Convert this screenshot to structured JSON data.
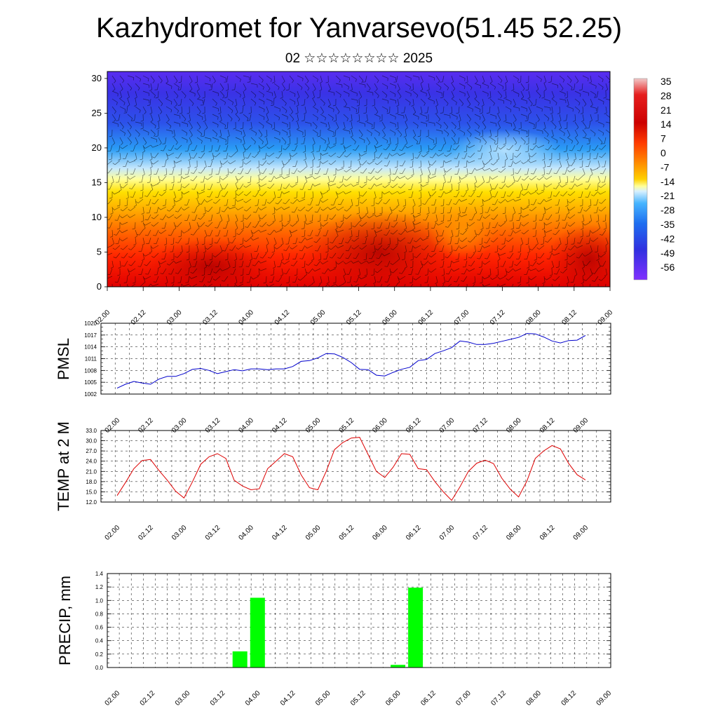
{
  "title": "Kazhydromet for Yanvarsevo(51.45 52.25)",
  "subtitle": "02 ☆☆☆☆☆☆☆☆ 2025",
  "time_labels": [
    "02.00",
    "02.12",
    "03.00",
    "03.12",
    "04.00",
    "04.12",
    "05.00",
    "05.12",
    "06.00",
    "06.12",
    "07.00",
    "07.12",
    "08.00",
    "08.12",
    "09.00"
  ],
  "chart_data": [
    {
      "type": "heatmap",
      "name": "temperature-cross-section",
      "x": [
        "02.00",
        "02.12",
        "03.00",
        "03.12",
        "04.00",
        "04.12",
        "05.00",
        "05.12",
        "06.00",
        "06.12",
        "07.00",
        "07.12",
        "08.00",
        "08.12",
        "09.00"
      ],
      "y_ticks": [
        0,
        5,
        10,
        15,
        20,
        25,
        30
      ],
      "ylim": [
        0,
        31
      ],
      "colorbar_labels": [
        "35",
        "28",
        "21",
        "14",
        "7",
        "0",
        "-7",
        "-14",
        "-21",
        "-28",
        "-35",
        "-42",
        "-49",
        "-56"
      ],
      "colorbar_range": [
        -60,
        39
      ],
      "overlay": "wind barbs"
    },
    {
      "type": "line",
      "name": "pmsl",
      "ylabel": "PMSL",
      "ylim": [
        1002,
        1020
      ],
      "y_ticks": [
        1002,
        1005,
        1008,
        1011,
        1014,
        1017,
        1020
      ],
      "color": "#0000cc",
      "grid": true,
      "values": [
        1003.5,
        1004.5,
        1005.2,
        1004.8,
        1004.5,
        1005.8,
        1006.5,
        1006.5,
        1007.2,
        1008.3,
        1008.5,
        1008.0,
        1007.2,
        1007.7,
        1008.2,
        1007.9,
        1008.4,
        1008.4,
        1008.2,
        1008.4,
        1008.4,
        1009.0,
        1010.3,
        1010.5,
        1011.2,
        1012.3,
        1012.2,
        1011.3,
        1010.0,
        1008.3,
        1008.2,
        1006.8,
        1006.6,
        1007.5,
        1008.3,
        1008.8,
        1010.5,
        1010.8,
        1012.3,
        1013.0,
        1013.8,
        1015.5,
        1015.2,
        1014.6,
        1014.6,
        1014.9,
        1015.4,
        1015.9,
        1016.4,
        1017.4,
        1017.3,
        1016.5,
        1015.5,
        1015.0,
        1015.6,
        1015.7,
        1016.9
      ]
    },
    {
      "type": "line",
      "name": "temp-2m",
      "ylabel": "TEMP at 2 M",
      "ylim": [
        12.0,
        33.0
      ],
      "y_ticks": [
        "12.0",
        "15.0",
        "18.0",
        "21.0",
        "24.0",
        "27.0",
        "30.0",
        "33.0"
      ],
      "color": "#dd0000",
      "grid": true,
      "values": [
        13.9,
        17.7,
        21.8,
        24.2,
        24.5,
        21.3,
        18.4,
        15.2,
        13.2,
        17.9,
        23.1,
        25.3,
        26.2,
        24.8,
        18.4,
        16.7,
        15.6,
        15.9,
        21.8,
        24.0,
        26.2,
        25.3,
        20.0,
        16.2,
        15.6,
        21.0,
        27.4,
        29.5,
        30.8,
        31.0,
        26.0,
        21.0,
        19.2,
        22.2,
        26.2,
        26.0,
        21.8,
        21.5,
        18.0,
        15.0,
        12.5,
        16.5,
        21.0,
        23.4,
        24.3,
        23.3,
        19.0,
        15.8,
        13.5,
        18.2,
        24.8,
        27.0,
        28.6,
        27.6,
        23.3,
        20.0,
        18.5
      ]
    },
    {
      "type": "bar",
      "name": "precipitation",
      "ylabel": "PRECIP, mm",
      "ylim": [
        0,
        1.4
      ],
      "y_ticks": [
        "0.0",
        "0.2",
        "0.4",
        "0.6",
        "0.8",
        "1.0",
        "1.2",
        "1.4"
      ],
      "color": "#00ff00",
      "grid": true,
      "bars": [
        {
          "period": "03.18-04.00",
          "value": 0.24
        },
        {
          "period": "04.00-04.06",
          "value": 1.04
        },
        {
          "period": "06.00-06.06",
          "value": 0.04
        },
        {
          "period": "06.06-06.12",
          "value": 1.19
        }
      ]
    }
  ]
}
